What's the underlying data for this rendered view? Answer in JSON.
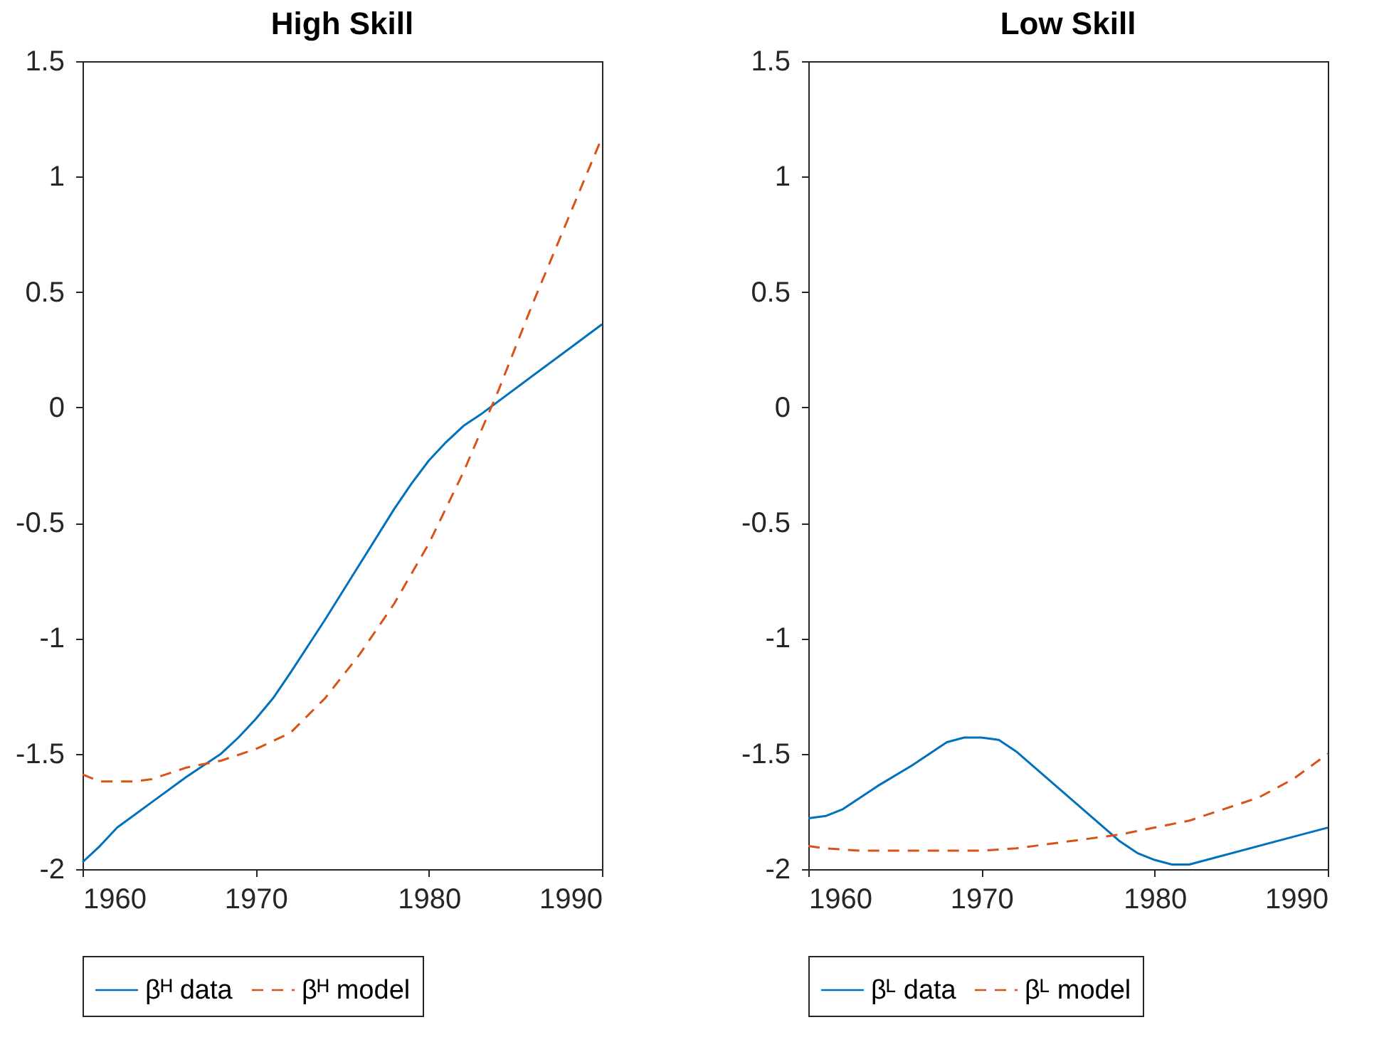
{
  "chart_data": [
    {
      "type": "line",
      "title": "High Skill",
      "xlim": [
        1960,
        1990
      ],
      "xticks": [
        1960,
        1970,
        1980,
        1990
      ],
      "ylim": [
        -2,
        1.5
      ],
      "yticks": [
        -2,
        -1.5,
        -1,
        -0.5,
        0,
        0.5,
        1,
        1.5
      ],
      "grid": false,
      "legend": "bottom",
      "series": [
        {
          "name": "βᴴ data",
          "color": "#0072bd",
          "line_style": "solid",
          "x": [
            1960,
            1961,
            1962,
            1964,
            1966,
            1968,
            1969,
            1970,
            1971,
            1972,
            1974,
            1976,
            1978,
            1979,
            1980,
            1981,
            1982,
            1983,
            1990
          ],
          "values": [
            -1.97,
            -1.9,
            -1.82,
            -1.71,
            -1.6,
            -1.5,
            -1.43,
            -1.35,
            -1.26,
            -1.15,
            -0.92,
            -0.68,
            -0.44,
            -0.33,
            -0.23,
            -0.15,
            -0.08,
            -0.03,
            0.36
          ]
        },
        {
          "name": "βᴴ model",
          "color": "#d95319",
          "line_style": "dashed",
          "x": [
            1960,
            1961,
            1962,
            1963,
            1964,
            1966,
            1968,
            1970,
            1972,
            1974,
            1976,
            1978,
            1980,
            1982,
            1984,
            1986,
            1988,
            1990
          ],
          "values": [
            -1.59,
            -1.62,
            -1.62,
            -1.62,
            -1.61,
            -1.56,
            -1.53,
            -1.48,
            -1.41,
            -1.26,
            -1.07,
            -0.85,
            -0.59,
            -0.28,
            0.07,
            0.45,
            0.81,
            1.17
          ]
        }
      ]
    },
    {
      "type": "line",
      "title": "Low Skill",
      "xlim": [
        1960,
        1990
      ],
      "xticks": [
        1960,
        1970,
        1980,
        1990
      ],
      "ylim": [
        -2,
        1.5
      ],
      "yticks": [
        -2,
        -1.5,
        -1,
        -0.5,
        0,
        0.5,
        1,
        1.5
      ],
      "grid": false,
      "legend": "bottom",
      "series": [
        {
          "name": "βᴸ data",
          "color": "#0072bd",
          "line_style": "solid",
          "x": [
            1960,
            1961,
            1962,
            1964,
            1966,
            1968,
            1969,
            1970,
            1971,
            1972,
            1974,
            1976,
            1978,
            1979,
            1980,
            1981,
            1982,
            1990
          ],
          "values": [
            -1.78,
            -1.77,
            -1.74,
            -1.64,
            -1.55,
            -1.45,
            -1.43,
            -1.43,
            -1.44,
            -1.49,
            -1.62,
            -1.75,
            -1.88,
            -1.93,
            -1.96,
            -1.98,
            -1.98,
            -1.82
          ]
        },
        {
          "name": "βᴸ model",
          "color": "#d95319",
          "line_style": "dashed",
          "x": [
            1960,
            1961,
            1963,
            1966,
            1970,
            1972,
            1974,
            1976,
            1978,
            1980,
            1982,
            1984,
            1986,
            1988,
            1990
          ],
          "values": [
            -1.9,
            -1.91,
            -1.92,
            -1.92,
            -1.92,
            -1.91,
            -1.89,
            -1.87,
            -1.85,
            -1.82,
            -1.79,
            -1.74,
            -1.69,
            -1.61,
            -1.5
          ]
        }
      ]
    }
  ]
}
